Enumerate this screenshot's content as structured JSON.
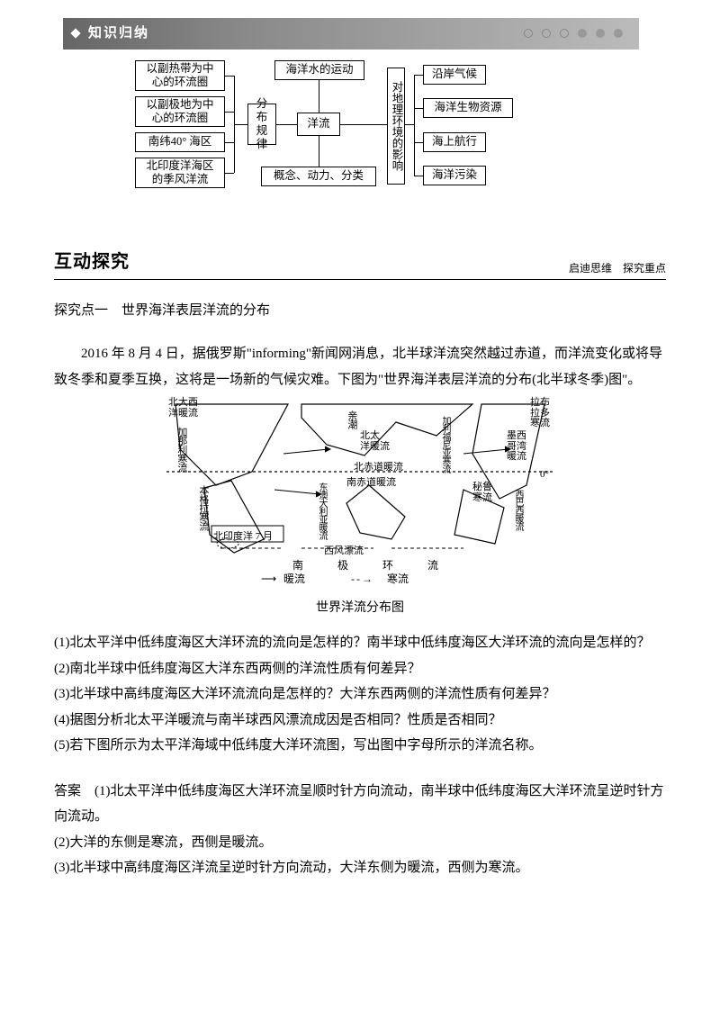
{
  "header": {
    "title": "知识归纳"
  },
  "concept": {
    "left_boxes": [
      "以副热带为中\n心的环流圈",
      "以副极地为中\n心的环流圈",
      "南纬40° 海区",
      "北印度洋海区\n的季风洋流"
    ],
    "mid_top": "海洋水的运动",
    "mid_small": "分布\n规律",
    "center": "洋流",
    "mid_bottom": "概念、动力、分类",
    "vright": "对地理环境的影响",
    "right_boxes": [
      "沿岸气候",
      "海洋生物资源",
      "海上航行",
      "海洋污染"
    ]
  },
  "section": {
    "title": "互动探究",
    "sub": "启迪思维　探究重点"
  },
  "topic": "探究点一　世界海洋表层洋流的分布",
  "intro": "2016 年 8 月 4 日，据俄罗斯\"informing\"新闻网消息，北半球洋流突然越过赤道，而洋流变化或将导致冬季和夏季互换，这将是一场新的气候灾难。下图为\"世界海洋表层洋流的分布(北半球冬季)图\"。",
  "fig": {
    "labels": {
      "nw": "北大西\n洋暖流",
      "jia": "加那利寒流",
      "benge": "本格拉寒流",
      "qinchao": "亲潮",
      "np": "北太\n洋暖流",
      "beichi": "北赤道暖流",
      "nanchi": "南赤道暖流",
      "eastau": "东澳大利亚暖流",
      "xifeng": "西风漂流",
      "nan": "南",
      "ji": "极",
      "huan": "环",
      "liu": "流",
      "indian": "北印度洋 7 月",
      "labu": "拉布\n拉多\n寒流",
      "mexi": "墨西\n哥湾\n暖流",
      "milu": "秘鲁\n寒流",
      "xibaxi": "西巴西暖流",
      "jiali": "加利福尼亚寒流",
      "zero": "0°",
      "legend_warm": "暖流",
      "legend_cold": "寒流"
    },
    "caption": "世界洋流分布图"
  },
  "questions": {
    "q1": "(1)北太平洋中低纬度海区大洋环流的流向是怎样的？南半球中低纬度海区大洋环流的流向是怎样的？",
    "q2": "(2)南北半球中低纬度海区大洋东西两侧的洋流性质有何差异？",
    "q3": "(3)北半球中高纬度海区大洋环流流向是怎样的？大洋东西两侧的洋流性质有何差异？",
    "q4": "(4)据图分析北太平洋暖流与南半球西风漂流成因是否相同？性质是否相同？",
    "q5": "(5)若下图所示为太平洋海域中低纬度大洋环流图，写出图中字母所示的洋流名称。"
  },
  "answers": {
    "label": "答案",
    "a1": "(1)北太平洋中低纬度海区大洋环流呈顺时针方向流动，南半球中低纬度海区大洋环流呈逆时针方向流动。",
    "a2": "(2)大洋的东侧是寒流，西侧是暖流。",
    "a3": "(3)北半球中高纬度海区洋流呈逆时针方向流动，大洋东侧为暖流，西侧为寒流。"
  }
}
